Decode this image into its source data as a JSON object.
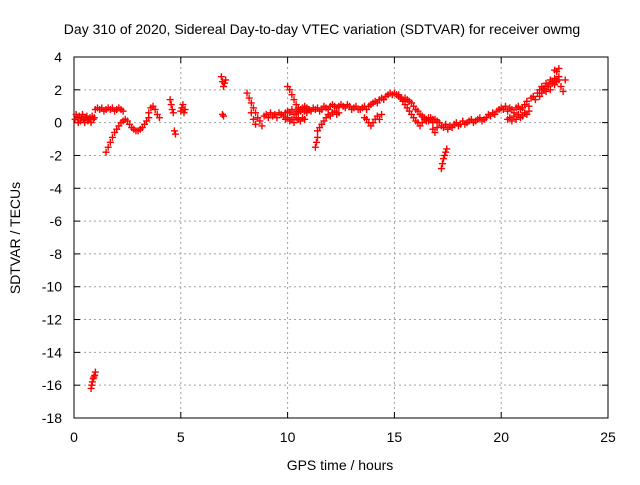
{
  "chart_data": {
    "type": "scatter",
    "title": "Day 310 of 2020, Sidereal Day-to-day VTEC variation (SDTVAR) for receiver owmg",
    "xlabel": "GPS time / hours",
    "ylabel": "SDTVAR / TECUs",
    "xlim": [
      0,
      25
    ],
    "ylim": [
      -18,
      4
    ],
    "xticks": [
      0,
      5,
      10,
      15,
      20,
      25
    ],
    "yticks": [
      -18,
      -16,
      -14,
      -12,
      -10,
      -8,
      -6,
      -4,
      -2,
      0,
      2,
      4
    ],
    "grid": true,
    "marker": "+",
    "color": "#ff0000",
    "series": [
      {
        "name": "SDTVAR",
        "x": [
          0.05,
          0.1,
          0.15,
          0.2,
          0.25,
          0.3,
          0.35,
          0.4,
          0.45,
          0.5,
          0.55,
          0.6,
          0.65,
          0.7,
          0.75,
          0.8,
          0.85,
          0.9,
          0.95,
          0.8,
          0.83,
          0.86,
          0.9,
          0.93,
          0.97,
          1.0,
          1.0,
          1.1,
          1.2,
          1.3,
          1.4,
          1.5,
          1.6,
          1.7,
          1.8,
          1.9,
          2.0,
          2.1,
          2.2,
          2.3,
          1.5,
          1.6,
          1.7,
          1.8,
          1.9,
          2.0,
          2.1,
          2.2,
          2.3,
          2.4,
          2.5,
          2.6,
          2.7,
          2.8,
          2.9,
          3.0,
          3.1,
          3.2,
          3.3,
          3.4,
          3.5,
          3.5,
          3.6,
          3.7,
          3.8,
          3.9,
          4.0,
          4.5,
          4.55,
          4.6,
          4.65,
          4.7,
          4.75,
          5.0,
          5.05,
          5.1,
          5.15,
          5.2,
          6.9,
          6.95,
          7.0,
          7.05,
          7.1,
          6.95,
          7.0,
          8.1,
          8.2,
          8.3,
          8.4,
          8.5,
          8.6,
          8.7,
          8.8,
          8.3,
          8.4,
          8.5,
          8.9,
          9.0,
          9.1,
          9.2,
          9.3,
          9.4,
          9.5,
          9.6,
          9.7,
          9.8,
          9.9,
          10.0,
          10.1,
          10.2,
          10.3,
          10.4,
          10.5,
          10.6,
          10.7,
          10.8,
          10.9,
          11.0,
          9.9,
          10.0,
          10.1,
          10.2,
          10.3,
          10.4,
          10.5,
          10.6,
          10.7,
          10.8,
          10.0,
          10.1,
          10.2,
          10.3,
          10.4,
          10.5,
          10.6,
          10.7,
          10.8,
          10.9,
          11.0,
          11.1,
          11.2,
          11.3,
          11.4,
          11.5,
          11.6,
          11.7,
          11.8,
          11.9,
          12.0,
          12.1,
          12.2,
          12.3,
          12.4,
          12.5,
          12.6,
          12.7,
          12.8,
          12.9,
          13.0,
          13.1,
          13.2,
          13.3,
          11.4,
          11.5,
          11.6,
          11.7,
          11.8,
          11.9,
          12.0,
          12.1,
          12.2,
          12.3,
          12.4,
          11.3,
          11.35,
          11.4,
          13.4,
          13.5,
          13.6,
          13.7,
          13.8,
          13.9,
          14.0,
          14.1,
          14.2,
          14.3,
          14.4,
          14.5,
          14.6,
          14.7,
          14.8,
          14.9,
          15.0,
          15.1,
          15.2,
          15.3,
          15.4,
          15.5,
          15.6,
          15.7,
          15.8,
          15.9,
          16.0,
          16.1,
          16.2,
          16.3,
          16.4,
          16.5,
          16.6,
          16.7,
          16.8,
          13.6,
          13.7,
          13.8,
          13.9,
          14.0,
          14.1,
          14.2,
          14.3,
          14.4,
          15.2,
          15.3,
          15.4,
          15.5,
          15.6,
          15.7,
          15.8,
          15.9,
          16.0,
          16.1,
          16.2,
          16.3,
          16.4,
          16.5,
          16.6,
          16.7,
          16.8,
          16.9,
          17.0,
          17.1,
          17.2,
          17.3,
          17.4,
          17.5,
          17.6,
          17.7,
          17.8,
          17.9,
          18.0,
          18.1,
          18.2,
          18.3,
          18.4,
          18.5,
          18.6,
          18.7,
          18.8,
          18.9,
          19.0,
          19.1,
          19.2,
          19.3,
          19.4,
          19.5,
          19.6,
          19.7,
          19.8,
          19.9,
          17.2,
          17.25,
          17.3,
          17.35,
          17.4,
          17.45,
          16.8,
          16.9,
          17.0,
          20.0,
          20.1,
          20.2,
          20.3,
          20.4,
          20.5,
          20.6,
          20.7,
          20.8,
          20.9,
          21.0,
          21.1,
          21.2,
          21.3,
          21.4,
          21.5,
          21.6,
          21.7,
          21.8,
          21.9,
          22.0,
          22.1,
          22.2,
          22.3,
          22.4,
          22.5,
          22.6,
          22.7,
          20.3,
          20.4,
          20.5,
          20.6,
          20.7,
          20.8,
          20.9,
          21.0,
          21.1,
          21.2,
          21.3,
          21.8,
          21.9,
          22.0,
          22.1,
          22.2,
          22.3,
          22.4,
          22.5,
          22.6,
          22.7,
          22.5,
          22.6,
          22.7,
          22.8,
          22.9,
          23.0
        ],
        "y": [
          0.2,
          0.5,
          0.3,
          0.0,
          0.4,
          0.1,
          0.3,
          0.5,
          0.2,
          0.0,
          0.3,
          0.4,
          0.1,
          0.2,
          0.3,
          0.0,
          0.4,
          0.2,
          0.3,
          -16.2,
          -16.0,
          -15.8,
          -15.6,
          -15.5,
          -15.4,
          -15.2,
          0.8,
          0.9,
          0.8,
          0.9,
          0.7,
          0.8,
          0.9,
          0.8,
          0.9,
          0.7,
          0.8,
          0.9,
          0.8,
          0.7,
          -1.8,
          -1.5,
          -1.2,
          -0.9,
          -0.6,
          -0.4,
          -0.2,
          0.0,
          0.1,
          0.2,
          0.1,
          -0.1,
          -0.3,
          -0.4,
          -0.5,
          -0.5,
          -0.4,
          -0.3,
          -0.1,
          0.1,
          0.3,
          0.6,
          0.9,
          1.0,
          0.8,
          0.5,
          0.3,
          1.4,
          1.1,
          0.8,
          0.6,
          -0.5,
          -0.7,
          0.7,
          0.9,
          1.1,
          0.6,
          0.8,
          2.8,
          2.5,
          2.2,
          2.4,
          2.6,
          0.5,
          0.4,
          1.8,
          1.5,
          1.2,
          0.9,
          0.6,
          0.3,
          0.1,
          -0.2,
          0.6,
          0.2,
          -0.1,
          0.4,
          0.5,
          0.3,
          0.6,
          0.4,
          0.5,
          0.3,
          0.6,
          0.5,
          0.4,
          0.6,
          2.2,
          2.0,
          1.7,
          1.4,
          1.1,
          0.9,
          0.7,
          0.8,
          1.0,
          0.9,
          0.8,
          0.2,
          0.3,
          0.1,
          0.2,
          0.0,
          0.3,
          0.2,
          0.1,
          0.3,
          0.2,
          0.7,
          0.6,
          0.8,
          0.5,
          0.7,
          0.6,
          0.8,
          0.9,
          0.7,
          0.6,
          0.8,
          0.7,
          0.9,
          0.8,
          0.9,
          0.7,
          0.8,
          1.0,
          0.9,
          0.8,
          1.0,
          1.1,
          1.0,
          0.9,
          1.0,
          1.1,
          1.0,
          0.9,
          1.1,
          1.0,
          0.8,
          0.9,
          1.0,
          0.8,
          -0.5,
          -0.3,
          -0.1,
          0.1,
          0.3,
          0.5,
          0.4,
          0.6,
          0.7,
          0.5,
          0.6,
          -1.5,
          -1.2,
          -0.9,
          0.8,
          0.9,
          1.0,
          0.8,
          1.0,
          1.1,
          1.2,
          1.3,
          1.2,
          1.4,
          1.5,
          1.4,
          1.6,
          1.7,
          1.8,
          1.7,
          1.8,
          1.7,
          1.6,
          1.5,
          1.4,
          1.5,
          1.4,
          1.3,
          1.2,
          1.0,
          0.8,
          0.7,
          0.5,
          0.4,
          0.3,
          0.2,
          0.1,
          0.3,
          0.2,
          0.3,
          0.2,
          0.0,
          -0.2,
          0.0,
          0.2,
          0.4,
          0.2,
          0.5,
          1.7,
          1.5,
          1.3,
          1.1,
          0.9,
          0.7,
          0.5,
          0.3,
          0.1,
          0.0,
          -0.2,
          0.0,
          0.2,
          0.1,
          0.3,
          0.2,
          0.0,
          0.2,
          0.1,
          0.0,
          -0.2,
          -0.3,
          -0.1,
          -0.4,
          -0.2,
          -0.3,
          -0.1,
          0.0,
          -0.2,
          -0.1,
          0.1,
          -0.1,
          0.0,
          0.1,
          0.2,
          0.0,
          0.1,
          0.2,
          0.3,
          0.1,
          0.2,
          0.3,
          0.5,
          0.4,
          0.6,
          0.5,
          0.7,
          0.8,
          -2.8,
          -2.5,
          -2.2,
          -2.0,
          -1.8,
          -1.6,
          -0.4,
          -0.6,
          -0.3,
          0.9,
          0.8,
          1.0,
          0.7,
          0.9,
          0.8,
          0.6,
          0.9,
          1.0,
          0.8,
          0.9,
          1.1,
          1.3,
          1.0,
          1.5,
          1.6,
          1.4,
          1.8,
          2.0,
          2.2,
          2.1,
          2.4,
          2.3,
          2.6,
          2.5,
          2.7,
          2.6,
          2.8,
          0.2,
          0.3,
          0.1,
          0.4,
          0.2,
          0.5,
          0.3,
          0.4,
          0.6,
          0.5,
          0.7,
          1.6,
          1.8,
          2.0,
          1.9,
          2.2,
          2.0,
          2.4,
          2.3,
          2.5,
          2.6,
          3.2,
          3.1,
          3.3,
          2.2,
          1.9,
          2.6
        ]
      }
    ]
  }
}
